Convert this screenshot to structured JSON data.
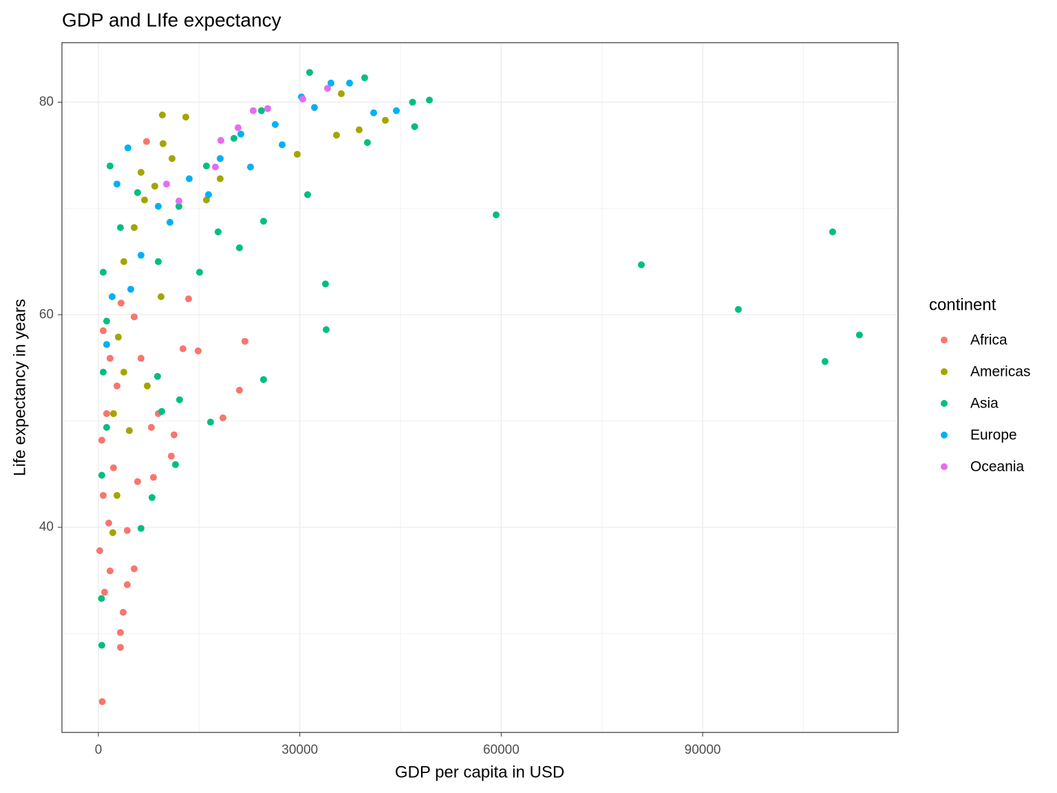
{
  "chart_data": {
    "type": "scatter",
    "title": "GDP and LIfe expectancy",
    "x_label": "GDP per capita in USD",
    "y_label": "Life expectancy in years",
    "legend_title": "continent",
    "legend_position": "right",
    "grid": true,
    "xlim": [
      -5430,
      119100
    ],
    "ylim": [
      20.7,
      85.6
    ],
    "xticks": [
      0,
      30000,
      60000,
      90000
    ],
    "yticks": [
      40,
      60,
      80
    ],
    "series": [
      {
        "name": "Africa",
        "color": "#F8766D",
        "x": [
          570,
          21830,
          13430,
          14860,
          21010,
          18550,
          11270,
          10860,
          8200,
          3280,
          3690,
          5330,
          4300,
          12600,
          720,
          1740,
          2770,
          1230,
          510,
          2250,
          720,
          1540,
          200,
          1740,
          920,
          3280,
          4300,
          5840,
          7890,
          8920,
          6350,
          5330,
          3380,
          7170
        ],
        "y": [
          23.6,
          57.5,
          61.5,
          56.6,
          52.9,
          50.3,
          48.7,
          46.7,
          44.7,
          30.1,
          32.0,
          36.1,
          39.7,
          56.8,
          58.5,
          55.9,
          53.3,
          50.7,
          48.2,
          45.6,
          43.0,
          40.4,
          37.8,
          35.9,
          33.9,
          28.7,
          34.6,
          44.3,
          49.4,
          50.7,
          55.9,
          59.8,
          61.1,
          76.3
        ]
      },
      {
        "name": "Americas",
        "color": "#A3A500",
        "x": [
          36180,
          38840,
          42740,
          35460,
          29620,
          2150,
          2770,
          4610,
          7280,
          9330,
          9630,
          9530,
          13020,
          3790,
          5330,
          6870,
          6350,
          8400,
          10970,
          2970,
          3790,
          2250,
          16090,
          18140
        ],
        "y": [
          80.8,
          77.4,
          78.3,
          76.9,
          75.1,
          39.5,
          43.0,
          49.1,
          53.3,
          61.7,
          76.1,
          78.8,
          78.6,
          65.0,
          68.2,
          70.8,
          73.4,
          72.1,
          74.7,
          57.9,
          54.6,
          50.7,
          70.8,
          72.8
        ]
      },
      {
        "name": "Asia",
        "color": "#00BF7D",
        "x": [
          59240,
          80870,
          95320,
          109360,
          113350,
          108230,
          33820,
          33930,
          24600,
          16700,
          49300,
          46790,
          47100,
          40070,
          39660,
          31460,
          31160,
          24600,
          17830,
          21010,
          15070,
          510,
          460,
          6350,
          7990,
          8810,
          11480,
          12090,
          9430,
          720,
          1230,
          720,
          1230,
          510,
          1740,
          3280,
          5840,
          8920,
          11990,
          16090,
          20190,
          24290
        ],
        "y": [
          69.4,
          64.7,
          60.5,
          67.8,
          58.1,
          55.6,
          62.9,
          58.6,
          53.9,
          49.9,
          80.2,
          80.0,
          77.7,
          76.2,
          82.3,
          82.8,
          71.3,
          68.8,
          67.8,
          66.3,
          64.0,
          28.9,
          33.3,
          39.9,
          42.8,
          54.2,
          45.9,
          52.0,
          50.9,
          64.0,
          59.4,
          54.6,
          49.4,
          44.9,
          74.0,
          68.2,
          71.5,
          65.0,
          70.2,
          74.0,
          76.6,
          79.2
        ]
      },
      {
        "name": "Europe",
        "color": "#00B0F6",
        "x": [
          37410,
          41000,
          44380,
          32180,
          27370,
          22650,
          16400,
          10660,
          6350,
          4820,
          2050,
          1230,
          4400,
          2770,
          34640,
          30240,
          26340,
          21220,
          18140,
          13530,
          8920
        ],
        "y": [
          81.8,
          79.0,
          79.2,
          79.5,
          76.0,
          73.9,
          71.3,
          68.7,
          65.6,
          62.4,
          61.7,
          57.2,
          75.7,
          72.3,
          81.8,
          80.5,
          77.9,
          77.0,
          74.7,
          72.8,
          70.2
        ]
      },
      {
        "name": "Oceania",
        "color": "#E76BF3",
        "x": [
          34130,
          30440,
          25210,
          23060,
          20810,
          18240,
          17420,
          11990,
          10150
        ],
        "y": [
          81.3,
          80.3,
          79.4,
          79.2,
          77.6,
          76.4,
          73.9,
          70.7,
          72.3
        ]
      }
    ]
  }
}
